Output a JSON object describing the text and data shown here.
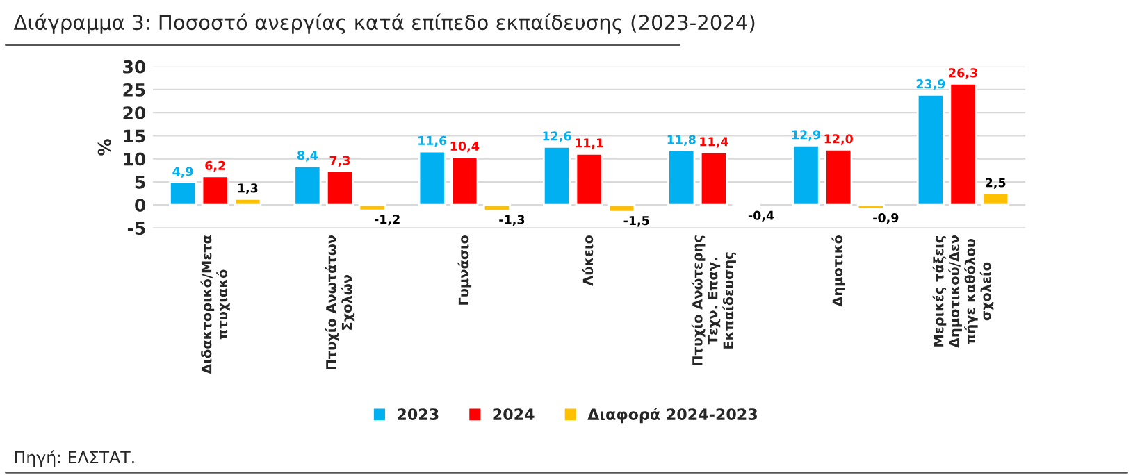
{
  "chart_data": {
    "type": "bar",
    "title": "Διάγραμμα 3: Ποσοστό ανεργίας κατά επίπεδο εκπαίδευσης (2023-2024)",
    "ylabel": "%",
    "categories": [
      "Διδακτορικό/Μετα\nπτυχιακό",
      "Πτυχίο Ανωτάτων\nΣχολών",
      "Γυμνάσιο",
      "Λύκειο",
      "Πτυχίο Ανώτερης\nΤεχν. Επαγ.\nΕκπαίδευσης",
      "Δημοτικό",
      "Μερικές τάξεις\nΔημοτικού/Δεν\nπήγε καθόλου\nσχολείο"
    ],
    "series": [
      {
        "name": "2023",
        "color": "#00b0f0",
        "values": [
          4.9,
          8.4,
          11.6,
          12.6,
          11.8,
          12.9,
          23.9
        ],
        "value_labels": [
          "4,9",
          "8,4",
          "11,6",
          "12,6",
          "11,8",
          "12,9",
          "23,9"
        ]
      },
      {
        "name": "2024",
        "color": "#ff0000",
        "values": [
          6.2,
          7.3,
          10.4,
          11.1,
          11.4,
          12.0,
          26.3
        ],
        "value_labels": [
          "6,2",
          "7,3",
          "10,4",
          "11,1",
          "11,4",
          "12,0",
          "26,3"
        ]
      },
      {
        "name": "Διαφορά 2024-2023",
        "color": "#ffc000",
        "values": [
          1.3,
          -1.2,
          -1.3,
          -1.5,
          -0.4,
          -0.9,
          2.5
        ],
        "value_labels": [
          "1,3",
          "-1,2",
          "-1,3",
          "-1,5",
          "-0,4",
          "-0,9",
          "2,5"
        ]
      }
    ],
    "ylim": [
      -5,
      30
    ],
    "yticks": [
      -5,
      0,
      5,
      10,
      15,
      20,
      25,
      30
    ],
    "grid": "y",
    "legend": "bottom",
    "annotations": [
      "Πηγή: ΕΛΣΤΑΤ."
    ]
  }
}
